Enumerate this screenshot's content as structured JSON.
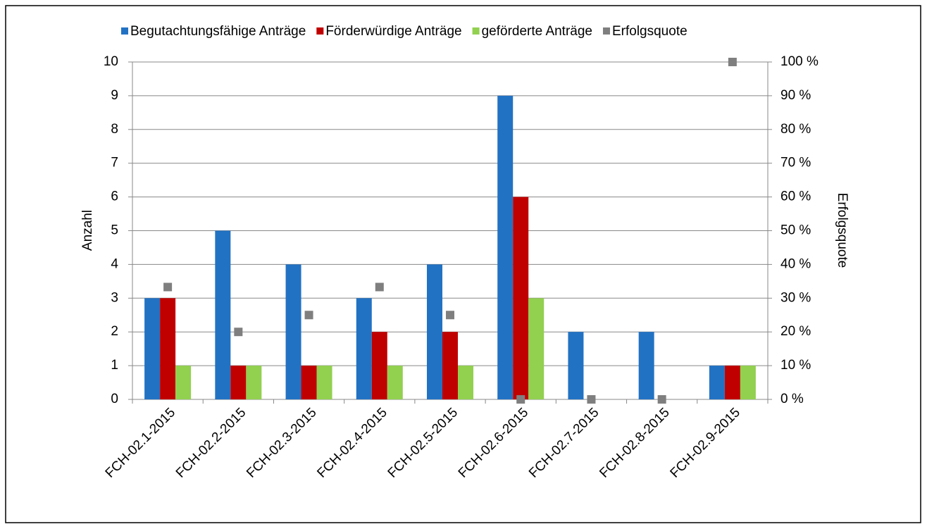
{
  "chart_data": {
    "type": "bar",
    "categories": [
      "FCH-02.1-2015",
      "FCH-02.2-2015",
      "FCH-02.3-2015",
      "FCH-02.4-2015",
      "FCH-02.5-2015",
      "FCH-02.6-2015",
      "FCH-02.7-2015",
      "FCH-02.8-2015",
      "FCH-02.9-2015"
    ],
    "series": [
      {
        "name": "Begutachtungsfähige Anträge",
        "color": "#2272c3",
        "values": [
          3,
          5,
          4,
          3,
          4,
          9,
          2,
          2,
          1
        ]
      },
      {
        "name": "Förderwürdige Anträge",
        "color": "#c00000",
        "values": [
          3,
          1,
          1,
          2,
          2,
          6,
          0,
          0,
          1
        ]
      },
      {
        "name": "geförderte Anträge",
        "color": "#92d050",
        "values": [
          1,
          1,
          1,
          1,
          1,
          3,
          0,
          0,
          1
        ]
      },
      {
        "name": "Erfolgsquote",
        "color": "#7f7f7f",
        "axis": "y2",
        "values": [
          33.3,
          20,
          25,
          33.3,
          25,
          0,
          0,
          0,
          100
        ]
      }
    ],
    "ylabel": "Anzahl",
    "y2label": "Erfolgsquote",
    "ylim": [
      0,
      10
    ],
    "yticks": [
      0,
      1,
      2,
      3,
      4,
      5,
      6,
      7,
      8,
      9,
      10
    ],
    "y2lim": [
      0,
      100
    ],
    "y2ticks": [
      {
        "value": 0,
        "label": "0 %"
      },
      {
        "value": 10,
        "label": "10 %"
      },
      {
        "value": 20,
        "label": "20 %"
      },
      {
        "value": 30,
        "label": "30 %"
      },
      {
        "value": 40,
        "label": "40 %"
      },
      {
        "value": 50,
        "label": "50 %"
      },
      {
        "value": 60,
        "label": "60 %"
      },
      {
        "value": 70,
        "label": "70 %"
      },
      {
        "value": 80,
        "label": "80 %"
      },
      {
        "value": 90,
        "label": "90 %"
      },
      {
        "value": 100,
        "label": "100 %"
      }
    ],
    "grid": true,
    "legend": "top"
  }
}
